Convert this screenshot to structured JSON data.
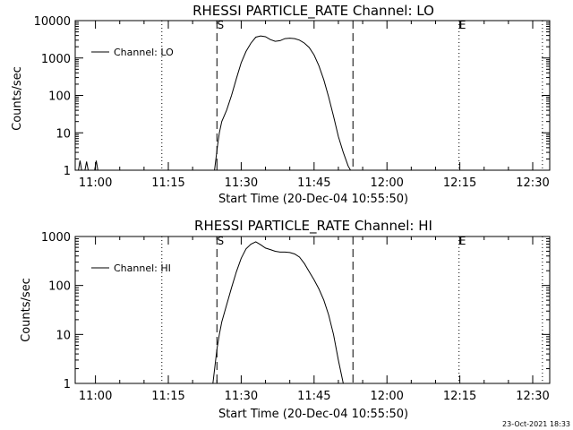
{
  "footer": {
    "timestamp": "23-Oct-2021 18:33"
  },
  "chart_data": [
    {
      "type": "line",
      "title": "RHESSI PARTICLE_RATE Channel: LO",
      "xlabel": "Start Time (20-Dec-04 10:55:50)",
      "ylabel": "Counts/sec",
      "yscale": "log",
      "xlim": [
        "10:55:50",
        "12:33:30"
      ],
      "ylim": [
        1,
        10000
      ],
      "xticks": [
        "11:00",
        "11:15",
        "11:30",
        "11:45",
        "12:00",
        "12:15",
        "12:30"
      ],
      "yticks": [
        "1",
        "10",
        "100",
        "1000",
        "10000"
      ],
      "legend": {
        "position": "top-left"
      },
      "markers": [
        {
          "label": "S",
          "time": "11:25:00",
          "style": "dashed"
        },
        {
          "label": "",
          "time": "11:53:00",
          "style": "dashed"
        },
        {
          "label": "E",
          "time": "12:14:50",
          "style": "dotted"
        },
        {
          "label": "",
          "time": "11:13:40",
          "style": "dotted"
        },
        {
          "label": "",
          "time": "12:32:00",
          "style": "dotted"
        }
      ],
      "series": [
        {
          "name": "Channel: LO",
          "x": [
            "10:56:30",
            "10:56:50",
            "10:57:10",
            "10:57:50",
            "10:58:10",
            "10:58:30",
            "10:59:50",
            "11:00:10",
            "11:00:30",
            "11:24:30",
            "11:25:10",
            "11:25:30",
            "11:26:00",
            "11:27:00",
            "11:28:00",
            "11:29:00",
            "11:30:00",
            "11:31:00",
            "11:32:00",
            "11:33:00",
            "11:34:00",
            "11:35:00",
            "11:36:00",
            "11:37:00",
            "11:38:00",
            "11:39:00",
            "11:40:00",
            "11:41:00",
            "11:42:00",
            "11:43:00",
            "11:44:00",
            "11:45:00",
            "11:46:00",
            "11:47:00",
            "11:48:00",
            "11:49:00",
            "11:50:00",
            "11:51:00",
            "11:52:00",
            "11:52:30"
          ],
          "y": [
            1,
            1.8,
            1,
            1,
            1.7,
            1,
            1,
            1.8,
            1,
            1,
            5,
            10,
            20,
            40,
            100,
            280,
            750,
            1500,
            2500,
            3600,
            3900,
            3700,
            3100,
            2800,
            2900,
            3300,
            3400,
            3300,
            3000,
            2500,
            1900,
            1200,
            620,
            260,
            90,
            28,
            8,
            3,
            1.3,
            1
          ]
        }
      ]
    },
    {
      "type": "line",
      "title": "RHESSI PARTICLE_RATE Channel: HI",
      "xlabel": "Start Time (20-Dec-04 10:55:50)",
      "ylabel": "Counts/sec",
      "yscale": "log",
      "xlim": [
        "10:55:50",
        "12:33:30"
      ],
      "ylim": [
        1,
        1000
      ],
      "xticks": [
        "11:00",
        "11:15",
        "11:30",
        "11:45",
        "12:00",
        "12:15",
        "12:30"
      ],
      "yticks": [
        "1",
        "10",
        "100",
        "1000"
      ],
      "legend": {
        "position": "top-left"
      },
      "markers": [
        {
          "label": "S",
          "time": "11:25:00",
          "style": "dashed"
        },
        {
          "label": "",
          "time": "11:53:00",
          "style": "dashed"
        },
        {
          "label": "E",
          "time": "12:14:50",
          "style": "dotted"
        },
        {
          "label": "",
          "time": "11:13:40",
          "style": "dotted"
        },
        {
          "label": "",
          "time": "12:32:00",
          "style": "dotted"
        }
      ],
      "series": [
        {
          "name": "Channel: HI",
          "x": [
            "11:24:10",
            "11:25:00",
            "11:25:30",
            "11:26:00",
            "11:27:00",
            "11:28:00",
            "11:29:00",
            "11:30:00",
            "11:31:00",
            "11:32:00",
            "11:33:00",
            "11:34:00",
            "11:35:00",
            "11:36:00",
            "11:37:00",
            "11:38:00",
            "11:39:00",
            "11:40:00",
            "11:41:00",
            "11:42:00",
            "11:43:00",
            "11:44:00",
            "11:45:00",
            "11:46:00",
            "11:47:00",
            "11:48:00",
            "11:49:00",
            "11:50:00",
            "11:51:00"
          ],
          "y": [
            1,
            5,
            10,
            18,
            40,
            90,
            190,
            360,
            560,
            700,
            780,
            680,
            580,
            540,
            500,
            480,
            480,
            470,
            440,
            380,
            280,
            190,
            130,
            85,
            50,
            25,
            10,
            3,
            1
          ]
        }
      ]
    }
  ]
}
